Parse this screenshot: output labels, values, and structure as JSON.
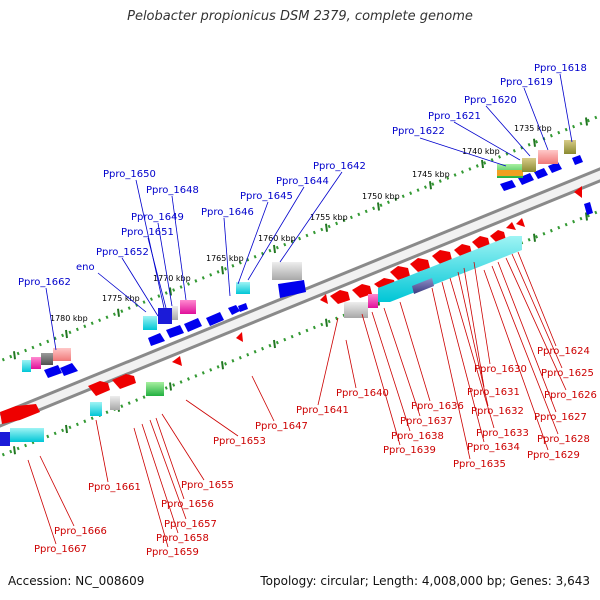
{
  "title": "Pelobacter propionicus DSM 2379, complete genome",
  "footer": {
    "accession": "Accession: NC_008609",
    "stats": "Topology: circular; Length: 4,008,000 bp; Genes: 3,643"
  },
  "colors": {
    "forward_label": "#0000cc",
    "reverse_label": "#cc0000",
    "forward_gene": "#0000ee",
    "reverse_gene": "#ee0000",
    "backbone": "#888888",
    "tick_dots": "#339933"
  },
  "scale_labels": [
    "1780 kbp",
    "1775 kbp",
    "1770 kbp",
    "1765 kbp",
    "1760 kbp",
    "1755 kbp",
    "1750 kbp",
    "1745 kbp",
    "1740 kbp",
    "1735 kbp"
  ],
  "forward_genes": [
    "Ppro_1618",
    "Ppro_1619",
    "Ppro_1620",
    "Ppro_1621",
    "Ppro_1622",
    "Ppro_1642",
    "Ppro_1644",
    "Ppro_1645",
    "Ppro_1646",
    "Ppro_1648",
    "Ppro_1649",
    "Ppro_1650",
    "Ppro_1651",
    "Ppro_1652",
    "eno",
    "Ppro_1662"
  ],
  "reverse_genes": [
    "Ppro_1624",
    "Ppro_1625",
    "Ppro_1626",
    "Ppro_1627",
    "Ppro_1628",
    "Ppro_1629",
    "Ppro_1630",
    "Ppro_1631",
    "Ppro_1632",
    "Ppro_1633",
    "Ppro_1634",
    "Ppro_1635",
    "Ppro_1636",
    "Ppro_1637",
    "Ppro_1638",
    "Ppro_1639",
    "Ppro_1640",
    "Ppro_1641",
    "Ppro_1647",
    "Ppro_1653",
    "Ppro_1655",
    "Ppro_1656",
    "Ppro_1657",
    "Ppro_1658",
    "Ppro_1659",
    "Ppro_1661",
    "Ppro_1666",
    "Ppro_1667"
  ]
}
